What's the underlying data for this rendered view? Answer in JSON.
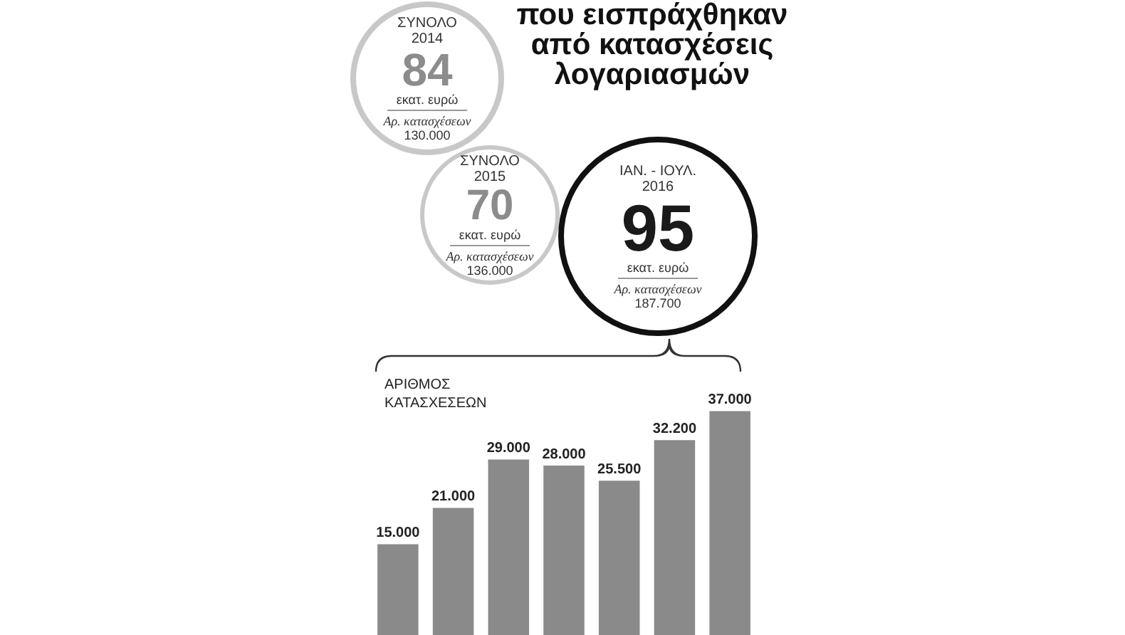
{
  "chart_data": [
    {
      "type": "other",
      "title": "που εισπράχθηκαν από κατασχέσεις λογαριασμών",
      "categories": [
        "ΣΥΝΟΛΟ\n2014",
        "ΣΥΝΟΛΟ\n2015",
        "ΙΑΝ. - ΙΟΥΛ.\n2016"
      ],
      "data_labels": true,
      "series": [
        {
          "name": "εκατ. ευρώ",
          "values": [
            84,
            70,
            95
          ],
          "colors": [
            "#8c8c8c",
            "#8c8c8c",
            "#1a1a1a"
          ]
        },
        {
          "name": "Αρ. κατασχέσεων",
          "values": [
            130000,
            136000,
            187700
          ],
          "value_labels": [
            "130.000",
            "136.000",
            "187.700"
          ]
        }
      ]
    },
    {
      "type": "bar",
      "ylabel": "ΑΡΙΘΜΟΣ ΚΑΤΑΣΧΕΣΕΩΝ",
      "categories": [
        null,
        null,
        null,
        null,
        null,
        null,
        null
      ],
      "values": [
        15000,
        21000,
        29000,
        28000,
        25500,
        32200,
        37000
      ],
      "value_labels": [
        "15.000",
        "21.000",
        "29.000",
        "28.000",
        "25.500",
        "32.200",
        "37.000"
      ],
      "color": "#8a8a8a",
      "tick_labels": false,
      "grid": false,
      "legend": false
    }
  ]
}
